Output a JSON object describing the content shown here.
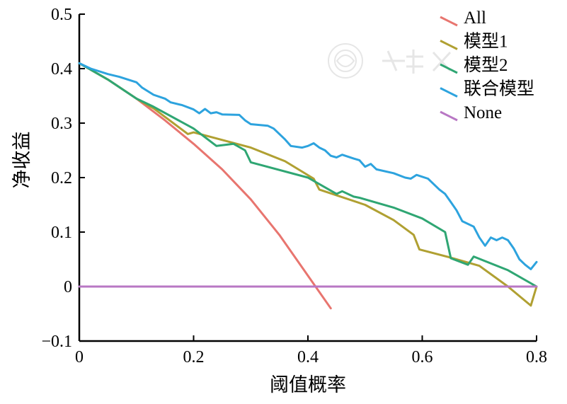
{
  "chart_data": {
    "type": "line",
    "title": "",
    "xlabel": "阈值概率",
    "ylabel": "净收益",
    "xlim": [
      0,
      0.8
    ],
    "ylim": [
      -0.1,
      0.5
    ],
    "x_ticks": [
      0,
      0.2,
      0.4,
      0.6,
      0.8
    ],
    "x_tick_labels": [
      "0",
      "0.2",
      "0.4",
      "0.6",
      "0.8"
    ],
    "y_ticks": [
      -0.1,
      0,
      0.1,
      0.2,
      0.3,
      0.4,
      0.5
    ],
    "y_tick_labels": [
      "−0.1",
      "0",
      "0.1",
      "0.2",
      "0.3",
      "0.4",
      "0.5"
    ],
    "grid": false,
    "legend_position": "top-right",
    "series": [
      {
        "name": "All",
        "color": "#E8756F",
        "points": [
          [
            0,
            0.41
          ],
          [
            0.05,
            0.38
          ],
          [
            0.1,
            0.345
          ],
          [
            0.15,
            0.305
          ],
          [
            0.2,
            0.262
          ],
          [
            0.25,
            0.215
          ],
          [
            0.3,
            0.16
          ],
          [
            0.35,
            0.095
          ],
          [
            0.4,
            0.02
          ],
          [
            0.44,
            -0.04
          ]
        ]
      },
      {
        "name": "模型1",
        "color": "#B0A032",
        "points": [
          [
            0,
            0.41
          ],
          [
            0.05,
            0.38
          ],
          [
            0.1,
            0.345
          ],
          [
            0.13,
            0.327
          ],
          [
            0.19,
            0.28
          ],
          [
            0.2,
            0.283
          ],
          [
            0.3,
            0.255
          ],
          [
            0.36,
            0.23
          ],
          [
            0.41,
            0.198
          ],
          [
            0.42,
            0.178
          ],
          [
            0.5,
            0.15
          ],
          [
            0.55,
            0.122
          ],
          [
            0.585,
            0.095
          ],
          [
            0.595,
            0.068
          ],
          [
            0.65,
            0.053
          ],
          [
            0.7,
            0.038
          ],
          [
            0.75,
            0.0
          ],
          [
            0.79,
            -0.035
          ],
          [
            0.8,
            0.0
          ]
        ]
      },
      {
        "name": "模型2",
        "color": "#2FA673",
        "points": [
          [
            0,
            0.41
          ],
          [
            0.05,
            0.38
          ],
          [
            0.1,
            0.345
          ],
          [
            0.13,
            0.33
          ],
          [
            0.2,
            0.29
          ],
          [
            0.24,
            0.258
          ],
          [
            0.27,
            0.262
          ],
          [
            0.29,
            0.25
          ],
          [
            0.3,
            0.228
          ],
          [
            0.4,
            0.2
          ],
          [
            0.45,
            0.17
          ],
          [
            0.46,
            0.175
          ],
          [
            0.48,
            0.165
          ],
          [
            0.49,
            0.163
          ],
          [
            0.55,
            0.145
          ],
          [
            0.6,
            0.125
          ],
          [
            0.64,
            0.1
          ],
          [
            0.65,
            0.052
          ],
          [
            0.68,
            0.04
          ],
          [
            0.69,
            0.055
          ],
          [
            0.75,
            0.03
          ],
          [
            0.8,
            0.0
          ]
        ]
      },
      {
        "name": "联合模型",
        "color": "#2DA3DE",
        "points": [
          [
            0,
            0.41
          ],
          [
            0.02,
            0.4
          ],
          [
            0.05,
            0.39
          ],
          [
            0.07,
            0.385
          ],
          [
            0.1,
            0.375
          ],
          [
            0.11,
            0.365
          ],
          [
            0.13,
            0.352
          ],
          [
            0.15,
            0.345
          ],
          [
            0.16,
            0.338
          ],
          [
            0.18,
            0.333
          ],
          [
            0.2,
            0.325
          ],
          [
            0.21,
            0.318
          ],
          [
            0.22,
            0.326
          ],
          [
            0.23,
            0.318
          ],
          [
            0.24,
            0.32
          ],
          [
            0.25,
            0.316
          ],
          [
            0.28,
            0.315
          ],
          [
            0.29,
            0.305
          ],
          [
            0.3,
            0.298
          ],
          [
            0.33,
            0.295
          ],
          [
            0.34,
            0.29
          ],
          [
            0.36,
            0.27
          ],
          [
            0.37,
            0.258
          ],
          [
            0.39,
            0.255
          ],
          [
            0.4,
            0.258
          ],
          [
            0.41,
            0.263
          ],
          [
            0.42,
            0.255
          ],
          [
            0.43,
            0.25
          ],
          [
            0.44,
            0.24
          ],
          [
            0.45,
            0.237
          ],
          [
            0.46,
            0.242
          ],
          [
            0.48,
            0.235
          ],
          [
            0.49,
            0.232
          ],
          [
            0.5,
            0.22
          ],
          [
            0.51,
            0.225
          ],
          [
            0.52,
            0.215
          ],
          [
            0.55,
            0.208
          ],
          [
            0.57,
            0.2
          ],
          [
            0.58,
            0.198
          ],
          [
            0.59,
            0.205
          ],
          [
            0.61,
            0.198
          ],
          [
            0.63,
            0.178
          ],
          [
            0.64,
            0.17
          ],
          [
            0.65,
            0.155
          ],
          [
            0.66,
            0.14
          ],
          [
            0.67,
            0.12
          ],
          [
            0.69,
            0.11
          ],
          [
            0.7,
            0.09
          ],
          [
            0.71,
            0.075
          ],
          [
            0.72,
            0.09
          ],
          [
            0.73,
            0.085
          ],
          [
            0.74,
            0.09
          ],
          [
            0.75,
            0.085
          ],
          [
            0.76,
            0.07
          ],
          [
            0.77,
            0.05
          ],
          [
            0.78,
            0.04
          ],
          [
            0.79,
            0.032
          ],
          [
            0.8,
            0.045
          ]
        ]
      },
      {
        "name": "None",
        "color": "#B877C4",
        "points": [
          [
            0,
            0
          ],
          [
            0.8,
            0
          ]
        ]
      }
    ]
  }
}
